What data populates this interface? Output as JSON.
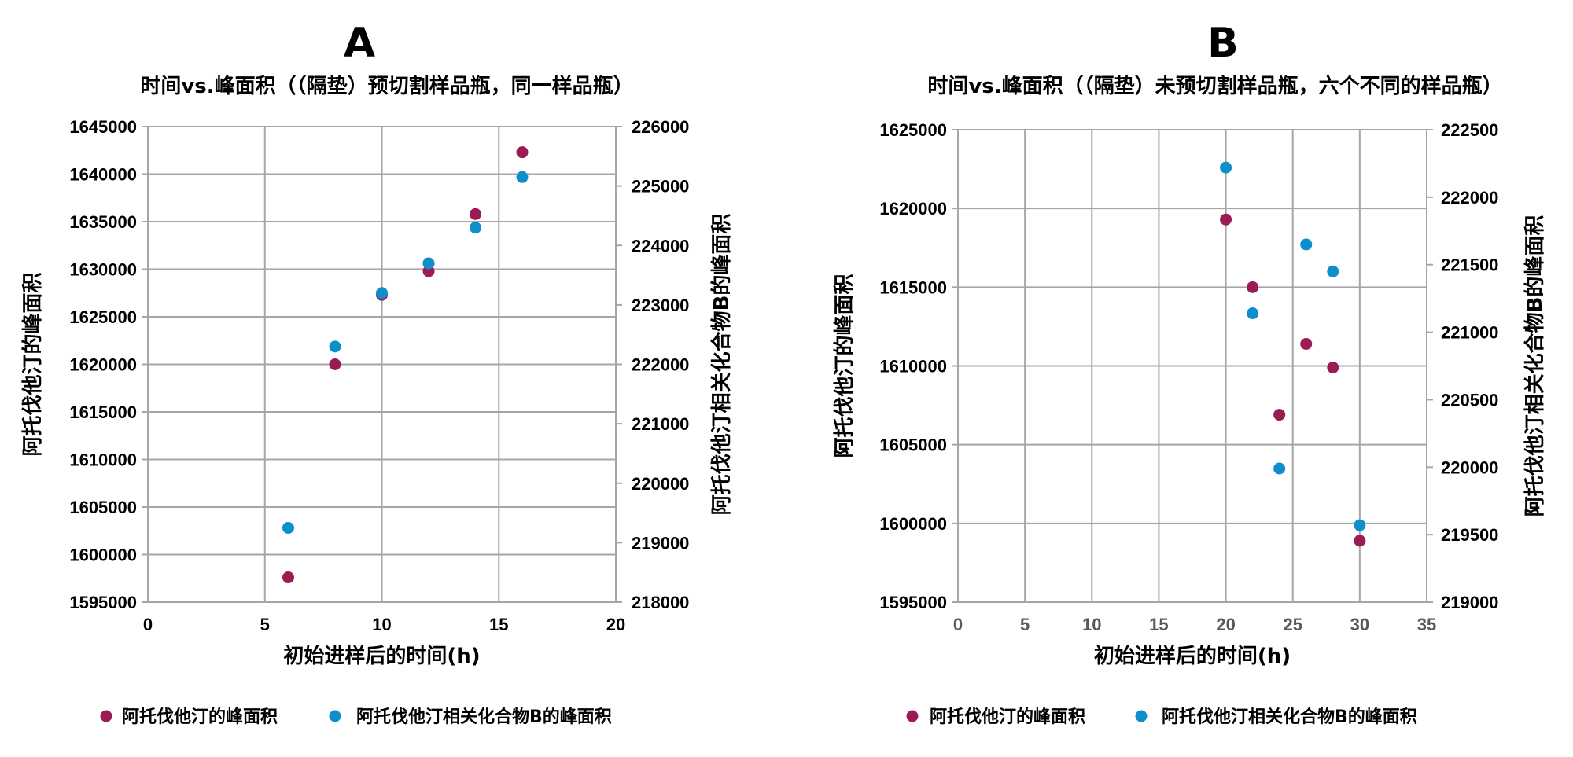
{
  "colors": {
    "series1": "#9b1b55",
    "series2": "#0e8fcc",
    "grid": "#a6a6a6"
  },
  "chart_data": [
    {
      "type": "scatter",
      "panel_label": "A",
      "title": "时间vs.峰面积（（隔垫）预切割样品瓶，同一样品瓶）",
      "xlabel": "初始进样后的时间(h)",
      "ylabel": "阿托伐他汀的峰面积",
      "y2label": "阿托伐他汀相关化合物B的峰面积",
      "xlim": [
        0,
        20
      ],
      "xticks": [
        0,
        5,
        10,
        15,
        20
      ],
      "ylim": [
        1595000,
        1645000
      ],
      "yticks": [
        1595000,
        1600000,
        1605000,
        1610000,
        1615000,
        1620000,
        1625000,
        1630000,
        1635000,
        1640000,
        1645000
      ],
      "y2lim": [
        218000,
        226000
      ],
      "y2ticks": [
        218000,
        219000,
        220000,
        221000,
        222000,
        223000,
        224000,
        225000,
        226000
      ],
      "grid": true,
      "legend_position": "bottom",
      "series": [
        {
          "name": "阿托伐他汀的峰面积",
          "axis": "left",
          "x": [
            6,
            8,
            10,
            12,
            14,
            16
          ],
          "y": [
            1597600,
            1620000,
            1627300,
            1629800,
            1635800,
            1642300
          ]
        },
        {
          "name": "阿托伐他汀相关化合物B的峰面积",
          "axis": "right",
          "x": [
            6,
            8,
            10,
            12,
            14,
            16
          ],
          "y": [
            219250,
            222300,
            223200,
            223700,
            224300,
            225150
          ]
        }
      ]
    },
    {
      "type": "scatter",
      "panel_label": "B",
      "title": "时间vs.峰面积（（隔垫）未预切割样品瓶，六个不同的样品瓶）",
      "xlabel": "初始进样后的时间(h)",
      "ylabel": "阿托伐他汀的峰面积",
      "y2label": "阿托伐他汀相关化合物B的峰面积",
      "xlim": [
        0,
        35
      ],
      "xticks": [
        0,
        5,
        10,
        15,
        20,
        25,
        30,
        35
      ],
      "ylim": [
        1595000,
        1625000
      ],
      "yticks": [
        1595000,
        1600000,
        1605000,
        1610000,
        1615000,
        1620000,
        1625000
      ],
      "y2lim": [
        219000,
        222500
      ],
      "y2ticks": [
        219000,
        219500,
        220000,
        220500,
        221000,
        221500,
        222000,
        222500
      ],
      "grid": true,
      "legend_position": "bottom",
      "series": [
        {
          "name": "阿托伐他汀的峰面积",
          "axis": "left",
          "x": [
            20,
            22,
            24,
            26,
            28,
            30
          ],
          "y": [
            1619300,
            1615000,
            1606900,
            1611400,
            1609900,
            1598900
          ]
        },
        {
          "name": "阿托伐他汀相关化合物B的峰面积",
          "axis": "right",
          "x": [
            20,
            22,
            24,
            26,
            28,
            30
          ],
          "y": [
            222220,
            221140,
            219990,
            221650,
            221450,
            219570
          ]
        }
      ]
    }
  ]
}
